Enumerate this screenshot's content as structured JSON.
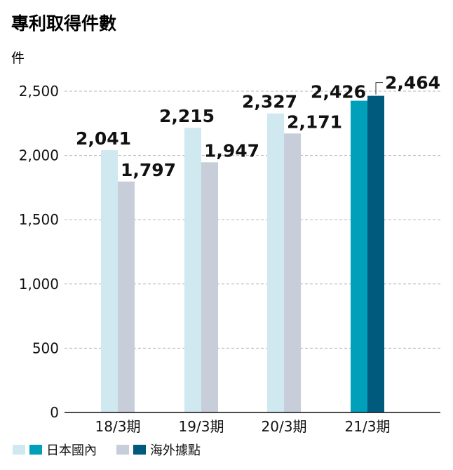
{
  "chart_data": {
    "type": "bar",
    "title": "專利取得件數",
    "ylabel": "件",
    "xlabel": "",
    "categories": [
      "18/3期",
      "19/3期",
      "20/3期",
      "21/3期"
    ],
    "series": [
      {
        "name": "日本國內",
        "values": [
          2041,
          2215,
          2327,
          2426
        ],
        "colors": [
          "#d0e8ef",
          "#d0e8ef",
          "#d0e8ef",
          "#009fba"
        ]
      },
      {
        "name": "海外據點",
        "values": [
          1797,
          1947,
          2171,
          2464
        ],
        "colors": [
          "#c7ced9",
          "#c7ced9",
          "#c7ced9",
          "#005a7d"
        ]
      }
    ],
    "data_labels": [
      [
        "2,041",
        "2,215",
        "2,327",
        "2,426"
      ],
      [
        "1,797",
        "1,947",
        "2,171",
        "2,464"
      ]
    ],
    "ylim": [
      0,
      2500
    ],
    "yticks": [
      0,
      500,
      1000,
      1500,
      2000,
      2500
    ],
    "ytick_labels": [
      "0",
      "500",
      "1,000",
      "1,500",
      "2,000",
      "2,500"
    ],
    "grid": true,
    "legend_position": "bottom-left",
    "legend": [
      {
        "label": "日本國內",
        "swatches": [
          "#d0e8ef",
          "#009fba"
        ]
      },
      {
        "label": "海外據點",
        "swatches": [
          "#c7ced9",
          "#005a7d"
        ]
      }
    ]
  }
}
